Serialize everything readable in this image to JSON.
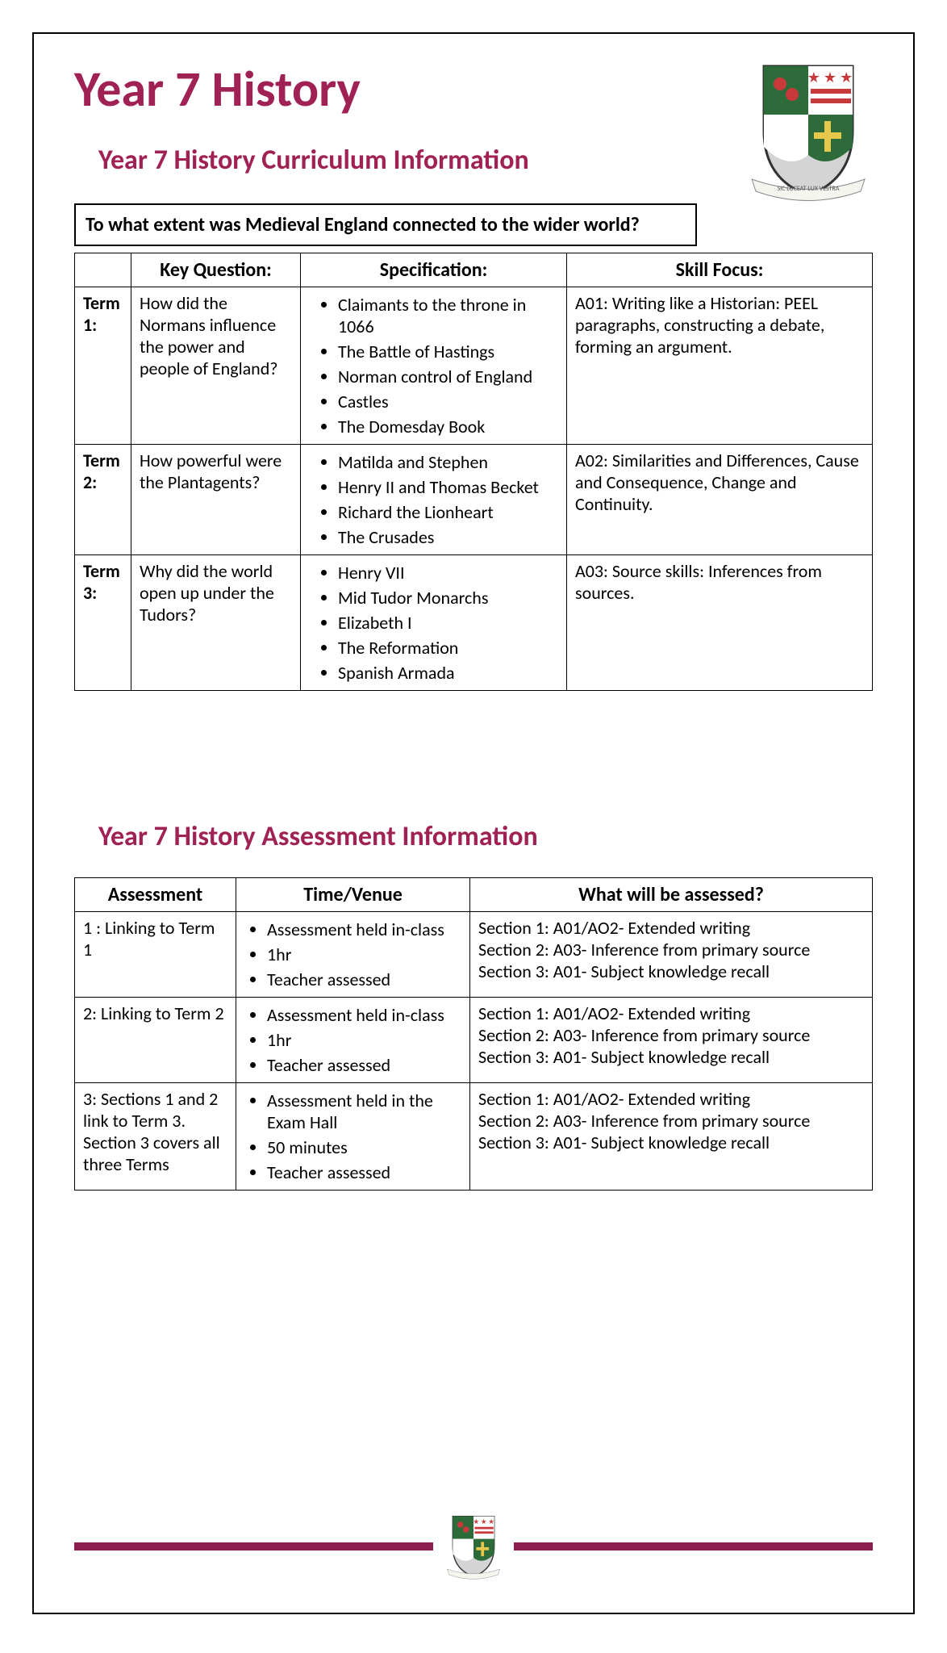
{
  "colors": {
    "accent": "#a02255",
    "bar": "#8c1d4f",
    "border": "#000000",
    "crest_green": "#2d6b3a",
    "crest_red": "#c8393b",
    "crest_gray": "#d4d4d4",
    "crest_yellow": "#e6c84c"
  },
  "title": "Year 7 History",
  "subtitle1": "Year 7 History Curriculum Information",
  "enquiry_question": "To what extent was Medieval England connected to the wider world?",
  "curriculum": {
    "headers": {
      "kq": "Key Question:",
      "spec": "Specification:",
      "skill": "Skill Focus:"
    },
    "rows": [
      {
        "term": "Term 1:",
        "kq": "How did the Normans influence the power and people of England?",
        "spec": [
          "Claimants to the throne in 1066",
          "The Battle of Hastings",
          "Norman control of England",
          "Castles",
          "The Domesday Book"
        ],
        "skill": "A01: Writing like a Historian: PEEL paragraphs, constructing a debate, forming an argument."
      },
      {
        "term": "Term 2:",
        "kq": "How powerful were the Plantagents?",
        "spec": [
          "Matilda and Stephen",
          "Henry II and Thomas Becket",
          "Richard the Lionheart",
          "The Crusades"
        ],
        "skill": "A02: Similarities and Differences, Cause and Consequence, Change and Continuity."
      },
      {
        "term": "Term 3:",
        "kq": "Why did the world open up under the Tudors?",
        "spec": [
          "Henry VII",
          "Mid Tudor Monarchs",
          "Elizabeth I",
          "The Reformation",
          "Spanish Armada"
        ],
        "skill": "A03: Source skills: Inferences from sources."
      }
    ]
  },
  "subtitle2": "Year 7 History Assessment Information",
  "assessment": {
    "headers": {
      "a": "Assessment",
      "tv": "Time/Venue",
      "w": "What will be assessed?"
    },
    "rows": [
      {
        "a": "1 : Linking to Term 1",
        "tv": [
          "Assessment held in-class",
          "1hr",
          "Teacher assessed"
        ],
        "w": [
          "Section 1: A01/AO2- Extended writing",
          "Section 2: A03- Inference from primary source",
          "Section 3: A01- Subject knowledge recall"
        ]
      },
      {
        "a": "2: Linking to Term 2",
        "tv": [
          "Assessment held in-class",
          "1hr",
          "Teacher assessed"
        ],
        "w": [
          "Section 1: A01/AO2- Extended writing",
          "Section 2: A03- Inference from primary source",
          "Section 3: A01- Subject knowledge recall"
        ]
      },
      {
        "a": "3: Sections 1 and 2 link to Term 3. Section 3 covers all three Terms",
        "tv": [
          "Assessment held in the Exam Hall",
          "50 minutes",
          "Teacher assessed"
        ],
        "w": [
          "Section 1: A01/AO2- Extended writing",
          "Section 2: A03- Inference from primary source",
          "Section 3: A01- Subject knowledge recall"
        ]
      }
    ]
  },
  "crest_motto": "SIC LUCEAT LUX VESTRA"
}
